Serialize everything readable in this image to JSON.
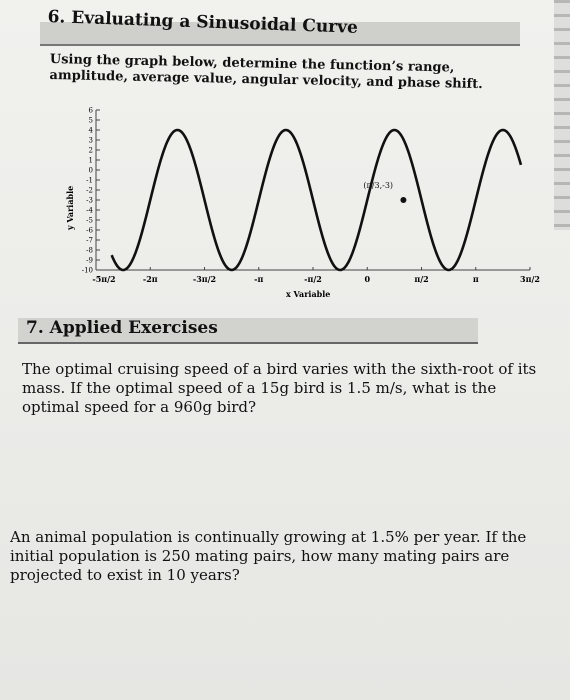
{
  "section6": {
    "title": "6. Evaluating a Sinusoidal Curve",
    "prompt": "Using the graph below, determine the function’s range, amplitude, average value, angular velocity, and phase shift."
  },
  "chart_data": {
    "type": "line",
    "title": "",
    "xlabel": "x Variable",
    "ylabel": "y Variable",
    "xlim": [
      -7.854,
      4.712
    ],
    "ylim": [
      -10,
      6
    ],
    "x_tick_labels": [
      "-5π/2",
      "-2π",
      "-3π/2",
      "-π",
      "-π/2",
      "0",
      "π/2",
      "π",
      "3π/2"
    ],
    "x_tick_values": [
      -7.854,
      -6.283,
      -4.712,
      -3.142,
      -1.571,
      0,
      1.571,
      3.142,
      4.712
    ],
    "y_tick_labels": [
      "6",
      "5",
      "4",
      "3",
      "2",
      "1",
      "0",
      "-1",
      "-2",
      "-3",
      "-4",
      "-5",
      "-6",
      "-7",
      "-8",
      "-9",
      "-10"
    ],
    "y_tick_values": [
      6,
      5,
      4,
      3,
      2,
      1,
      0,
      -1,
      -2,
      -3,
      -4,
      -5,
      -6,
      -7,
      -8,
      -9,
      -10
    ],
    "series": [
      {
        "amplitude": 7,
        "midline": -3,
        "angular_velocity": 2,
        "phase": 3.142,
        "x_start": -7.4,
        "x_end": 4.45
      }
    ],
    "annotation": {
      "label": "(π/3,-3)",
      "x": 1.047,
      "y": -3
    },
    "grid": false
  },
  "section7": {
    "title": "7. Applied Exercises",
    "q1": "The optimal cruising speed of a bird varies with the sixth-root of its mass. If the optimal speed of a 15g bird is 1.5 m/s, what is the optimal speed for a 960g bird?",
    "q2": "An animal population is continually growing at 1.5% per year. If the initial population is 250 mating pairs, how many mating pairs are projected to exist in 10 years?"
  }
}
